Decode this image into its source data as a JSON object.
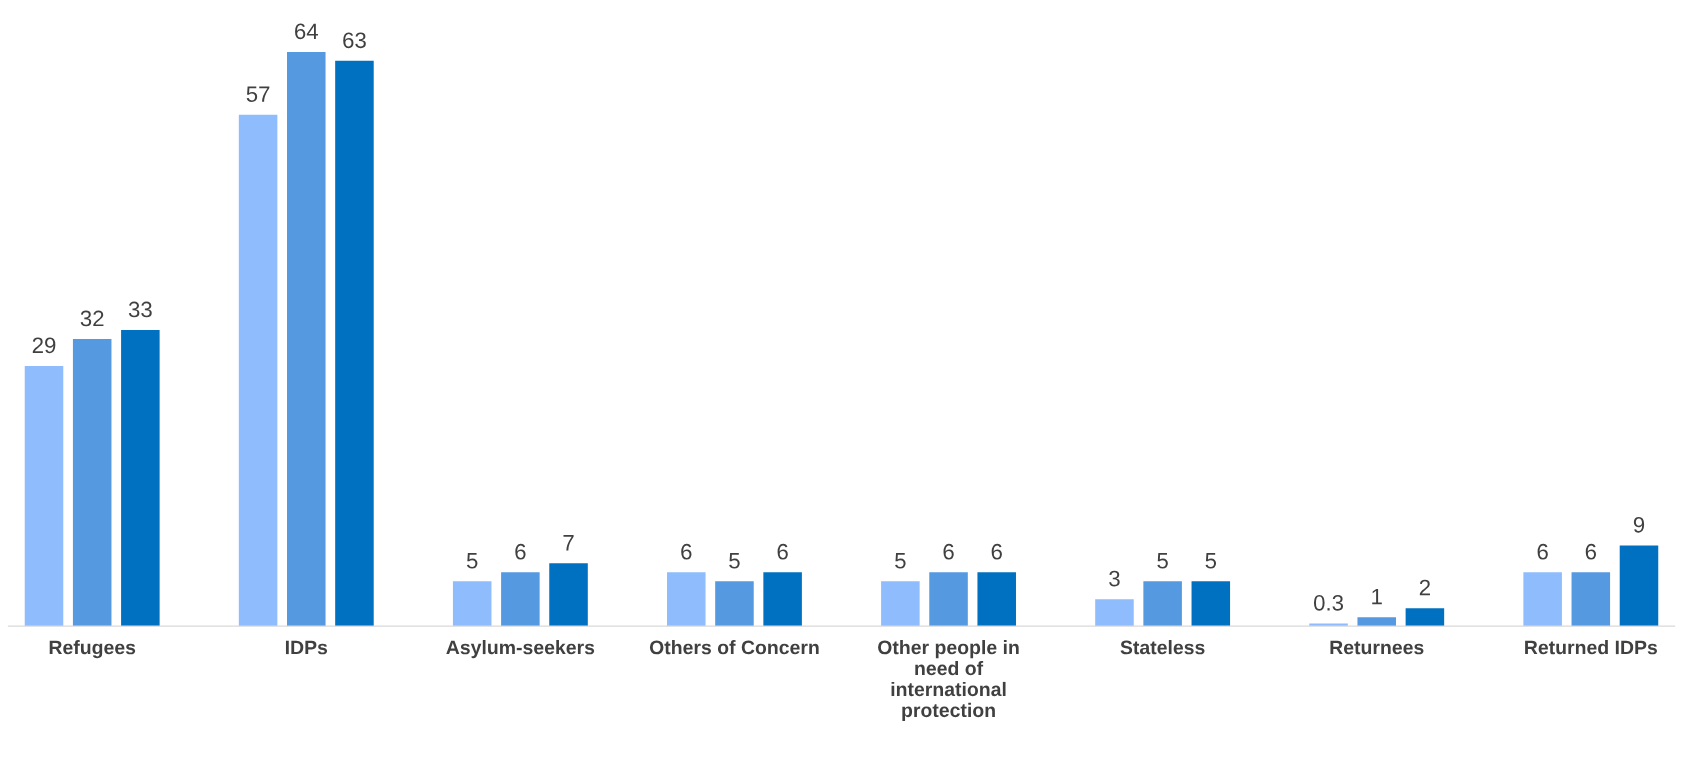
{
  "chart_data": {
    "type": "bar",
    "categories": [
      "Refugees",
      "IDPs",
      "Asylum-seekers",
      "Others of Concern",
      "Other people in\nneed of\ninternational\nprotection",
      "Stateless",
      "Returnees",
      "Returned IDPs"
    ],
    "series": [
      {
        "color": "#8fbcfc",
        "values": [
          29,
          57,
          5,
          6,
          5,
          3,
          0.3,
          6
        ]
      },
      {
        "color": "#5599e0",
        "values": [
          32,
          64,
          6,
          5,
          6,
          5,
          1,
          6
        ]
      },
      {
        "color": "#0070c0",
        "values": [
          33,
          63,
          7,
          6,
          6,
          5,
          2,
          9
        ]
      }
    ],
    "data_labels": true,
    "grid": false,
    "legend": false,
    "tick_labels": "x"
  }
}
